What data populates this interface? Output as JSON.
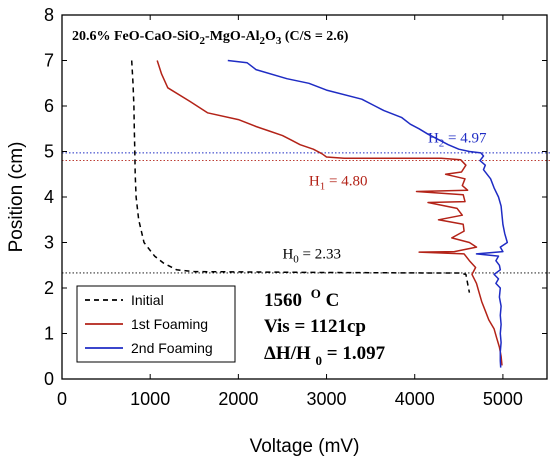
{
  "chart_data": {
    "type": "line",
    "xlabel": "Voltage (mV)",
    "ylabel": "Position (cm)",
    "xlim": [
      0,
      5500
    ],
    "ylim": [
      0,
      8
    ],
    "x_ticks": [
      0,
      1000,
      2000,
      3000,
      4000,
      5000
    ],
    "y_ticks": [
      0,
      1,
      2,
      3,
      4,
      5,
      6,
      7,
      8
    ],
    "title_parts": [
      "20.6% FeO-CaO-SiO",
      "2",
      "-MgO-Al",
      "2",
      "O",
      "3",
      " (C/S = 2.6)"
    ],
    "grid": false,
    "legend_position": "bottom-left",
    "series": [
      {
        "name": "Initial",
        "color": "#000000",
        "dash": "dashed",
        "points": [
          [
            790,
            7.0
          ],
          [
            805,
            6.5
          ],
          [
            815,
            6.0
          ],
          [
            820,
            5.5
          ],
          [
            825,
            5.0
          ],
          [
            830,
            4.5
          ],
          [
            840,
            4.0
          ],
          [
            870,
            3.5
          ],
          [
            930,
            3.0
          ],
          [
            1050,
            2.7
          ],
          [
            1150,
            2.55
          ],
          [
            1300,
            2.4
          ],
          [
            1500,
            2.36
          ],
          [
            3000,
            2.34
          ],
          [
            4200,
            2.33
          ],
          [
            4500,
            2.33
          ],
          [
            4580,
            2.3
          ],
          [
            4600,
            2.1
          ],
          [
            4620,
            1.9
          ]
        ]
      },
      {
        "name": "1st Foaming",
        "color": "#b32318",
        "dash": "solid",
        "points": [
          [
            1080,
            7.0
          ],
          [
            1130,
            6.7
          ],
          [
            1200,
            6.4
          ],
          [
            1450,
            6.1
          ],
          [
            1650,
            5.85
          ],
          [
            2000,
            5.7
          ],
          [
            2200,
            5.55
          ],
          [
            2350,
            5.45
          ],
          [
            2500,
            5.35
          ],
          [
            2600,
            5.25
          ],
          [
            2700,
            5.15
          ],
          [
            2850,
            5.05
          ],
          [
            2950,
            4.95
          ],
          [
            3000,
            4.88
          ],
          [
            3200,
            4.85
          ],
          [
            4300,
            4.85
          ],
          [
            4520,
            4.82
          ],
          [
            4580,
            4.7
          ],
          [
            4530,
            4.55
          ],
          [
            4350,
            4.5
          ],
          [
            4570,
            4.4
          ],
          [
            4540,
            4.25
          ],
          [
            4600,
            4.15
          ],
          [
            4020,
            4.12
          ],
          [
            4550,
            4.05
          ],
          [
            4570,
            3.9
          ],
          [
            4150,
            3.88
          ],
          [
            4480,
            3.75
          ],
          [
            4540,
            3.6
          ],
          [
            4270,
            3.5
          ],
          [
            4550,
            3.4
          ],
          [
            4560,
            3.25
          ],
          [
            4420,
            3.1
          ],
          [
            4620,
            3.0
          ],
          [
            4700,
            2.9
          ],
          [
            4450,
            2.8
          ],
          [
            4050,
            2.79
          ],
          [
            4560,
            2.75
          ],
          [
            4620,
            2.6
          ],
          [
            4690,
            2.45
          ],
          [
            4650,
            2.3
          ],
          [
            4700,
            2.1
          ],
          [
            4730,
            1.9
          ],
          [
            4760,
            1.7
          ],
          [
            4800,
            1.5
          ],
          [
            4840,
            1.3
          ],
          [
            4900,
            1.1
          ],
          [
            4930,
            0.9
          ],
          [
            4960,
            0.7
          ],
          [
            4980,
            0.5
          ],
          [
            4990,
            0.3
          ]
        ]
      },
      {
        "name": "2nd Foaming",
        "color": "#1f2cc4",
        "dash": "solid",
        "points": [
          [
            1880,
            7.0
          ],
          [
            2100,
            6.95
          ],
          [
            2200,
            6.8
          ],
          [
            2550,
            6.6
          ],
          [
            2800,
            6.5
          ],
          [
            3000,
            6.35
          ],
          [
            3400,
            6.15
          ],
          [
            3550,
            6.0
          ],
          [
            3650,
            5.9
          ],
          [
            3850,
            5.75
          ],
          [
            3950,
            5.6
          ],
          [
            4050,
            5.5
          ],
          [
            4150,
            5.38
          ],
          [
            4280,
            5.25
          ],
          [
            4380,
            5.15
          ],
          [
            4500,
            5.05
          ],
          [
            4620,
            5.0
          ],
          [
            4750,
            4.97
          ],
          [
            4780,
            4.9
          ],
          [
            4740,
            4.8
          ],
          [
            4800,
            4.7
          ],
          [
            4780,
            4.6
          ],
          [
            4860,
            4.4
          ],
          [
            4900,
            4.2
          ],
          [
            4950,
            4.0
          ],
          [
            4980,
            3.8
          ],
          [
            4990,
            3.6
          ],
          [
            5000,
            3.4
          ],
          [
            5020,
            3.2
          ],
          [
            5050,
            3.0
          ],
          [
            4970,
            2.9
          ],
          [
            5000,
            2.8
          ],
          [
            4700,
            2.75
          ],
          [
            4950,
            2.7
          ],
          [
            4920,
            2.6
          ],
          [
            4960,
            2.5
          ],
          [
            4970,
            2.4
          ],
          [
            4900,
            2.3
          ],
          [
            4950,
            2.2
          ],
          [
            4920,
            2.1
          ],
          [
            4970,
            2.0
          ],
          [
            4960,
            1.8
          ],
          [
            4980,
            1.6
          ],
          [
            4970,
            1.4
          ],
          [
            4980,
            1.2
          ],
          [
            4970,
            1.0
          ],
          [
            4980,
            0.8
          ],
          [
            4970,
            0.6
          ],
          [
            4970,
            0.4
          ],
          [
            4975,
            0.25
          ]
        ]
      }
    ],
    "reference_lines": [
      {
        "y": 4.97,
        "color": "#1f2cc4",
        "style": "dotted"
      },
      {
        "y": 4.8,
        "color": "#b32318",
        "style": "dotted"
      },
      {
        "y": 2.33,
        "color": "#000000",
        "style": "dotted"
      }
    ],
    "annotations": [
      {
        "main": "H",
        "sub": "2",
        "rest": " = 4.97",
        "x": 4150,
        "y": 5.2,
        "color": "#1f2cc4"
      },
      {
        "main": "H",
        "sub": "1",
        "rest": " = 4.80",
        "x": 2800,
        "y": 4.25,
        "color": "#b32318"
      },
      {
        "main": "H",
        "sub": "0",
        "rest": " = 2.33",
        "x": 2500,
        "y": 2.65,
        "color": "#000000"
      }
    ],
    "info_box": {
      "temperature_value": "1560",
      "temperature_sup": "O",
      "temperature_unit": "C",
      "viscosity": "Vis = 1121cp",
      "ratio_prefix": "ΔH/H",
      "ratio_sub": "0",
      "ratio_suffix": " = 1.097"
    }
  }
}
